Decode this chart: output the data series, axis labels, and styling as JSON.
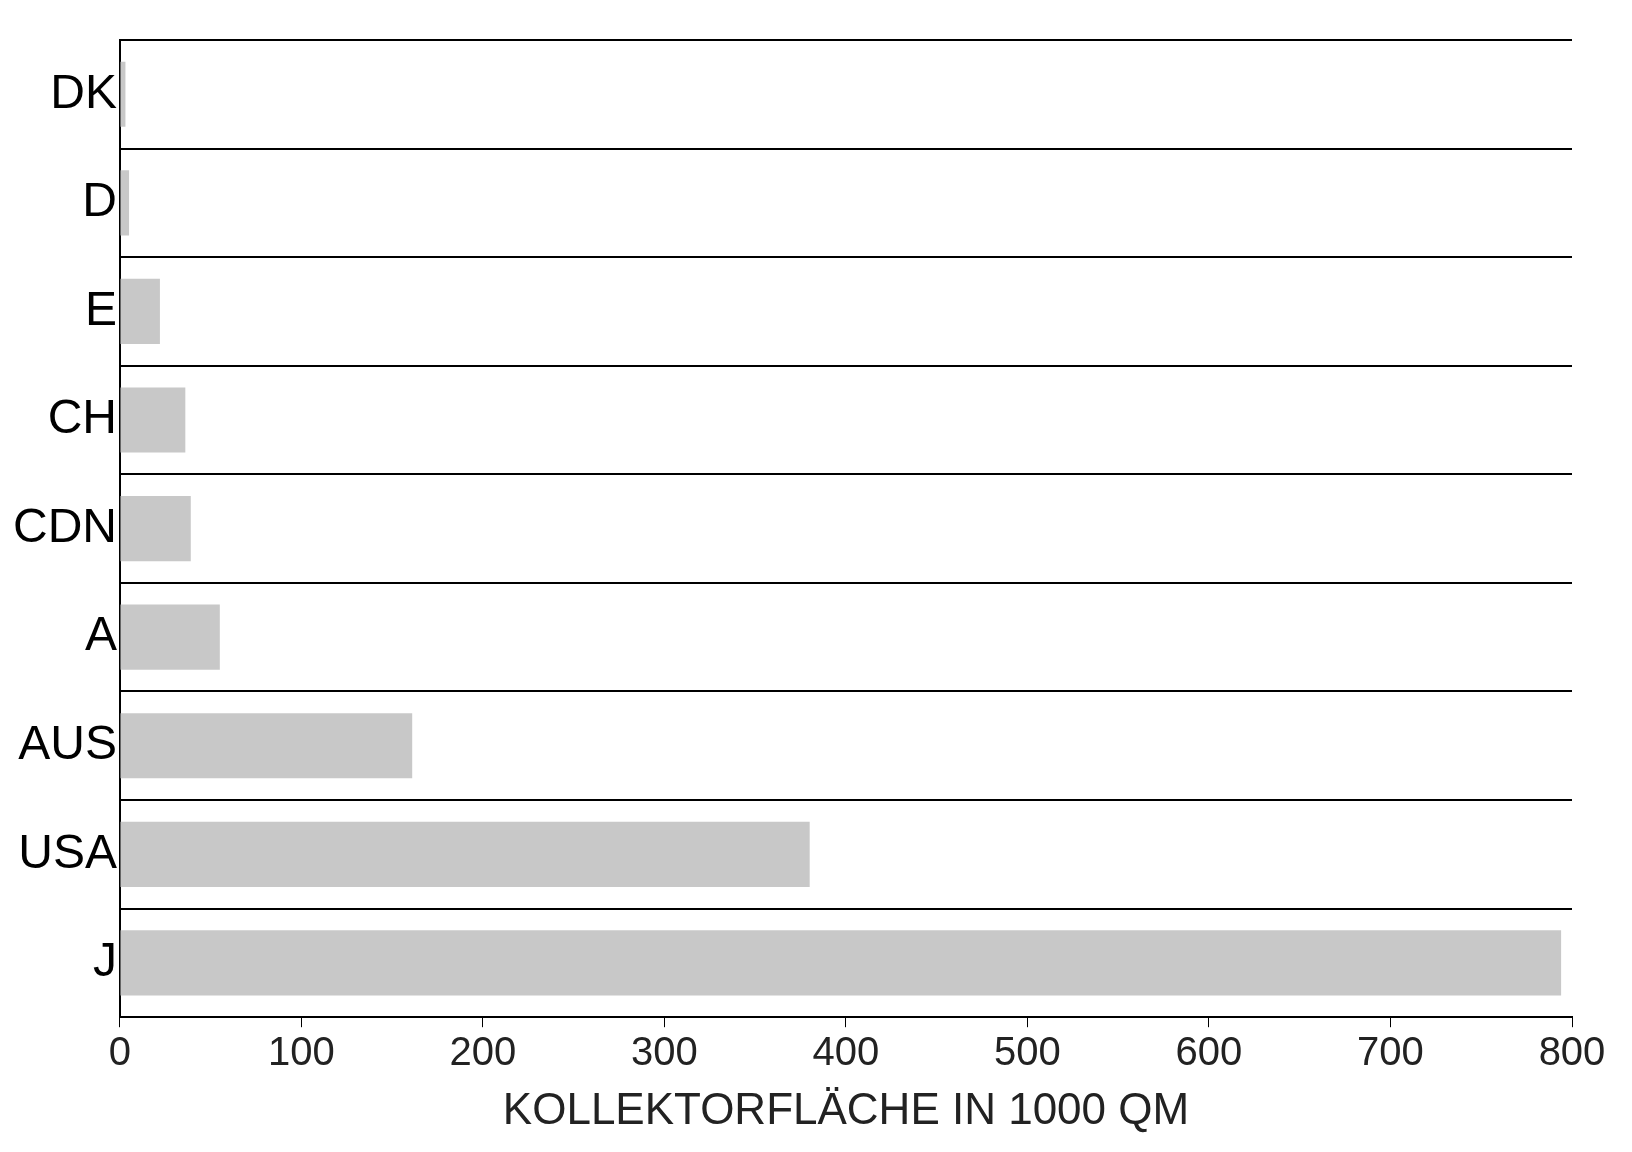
{
  "chart_data": {
    "type": "bar",
    "orientation": "horizontal",
    "xlabel": "KOLLEKTORFLÄCHE IN 1000 QM",
    "categories": [
      "DK",
      "D",
      "E",
      "CH",
      "CDN",
      "A",
      "AUS",
      "USA",
      "J"
    ],
    "values": [
      3,
      5,
      22,
      36,
      39,
      55,
      161,
      380,
      794
    ],
    "color": "#c8c8c8",
    "xlim": [
      0,
      800
    ],
    "xticks": [
      0,
      100,
      200,
      300,
      400,
      500,
      600,
      700,
      800
    ]
  }
}
